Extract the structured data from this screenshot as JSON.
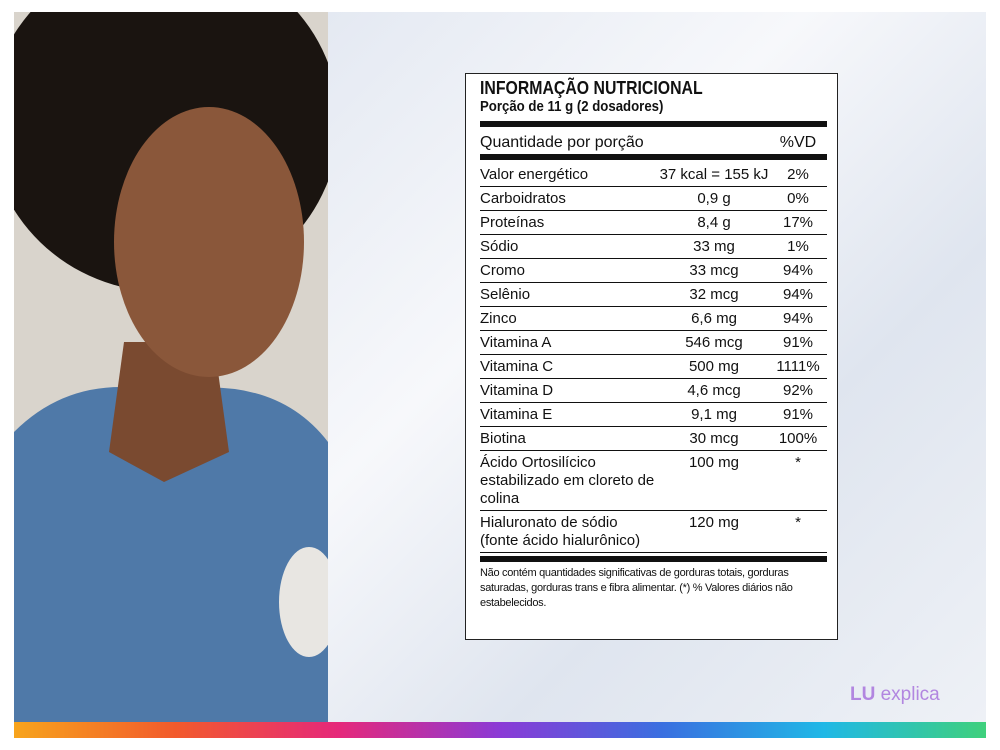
{
  "label": {
    "title": "INFORMAÇÃO NUTRICIONAL",
    "portion": "Porção de 11 g (2 dosadores)",
    "header": [
      "Quantidade por porção",
      "%VD"
    ],
    "rows": [
      [
        "Valor energético",
        "37 kcal = 155 kJ",
        "2%"
      ],
      [
        "Carboidratos",
        "0,9 g",
        "0%"
      ],
      [
        "Proteínas",
        "8,4 g",
        "17%"
      ],
      [
        "Sódio",
        "33 mg",
        "1%"
      ],
      [
        "Cromo",
        "33 mcg",
        "94%"
      ],
      [
        "Selênio",
        "32 mcg",
        "94%"
      ],
      [
        "Zinco",
        "6,6 mg",
        "94%"
      ],
      [
        "Vitamina A",
        "546 mcg",
        "91%"
      ],
      [
        "Vitamina C",
        "500 mg",
        "1111%"
      ],
      [
        "Vitamina D",
        "4,6 mcg",
        "92%"
      ],
      [
        "Vitamina E",
        "9,1 mg",
        "91%"
      ],
      [
        "Biotina",
        "30 mcg",
        "100%"
      ],
      [
        "Ácido Ortosilícico estabilizado em cloreto de colina",
        "100 mg",
        "*"
      ],
      [
        "Hialuronato de sódio (fonte ácido hialurônico)",
        "120 mg",
        "*"
      ]
    ],
    "footnote": "Não contém quantidades significativas de gorduras totais, gorduras saturadas, gorduras trans e fibra alimentar. (*) % Valores diários não estabelecidos."
  },
  "logo": {
    "brand": "LU",
    "text": "explica"
  }
}
